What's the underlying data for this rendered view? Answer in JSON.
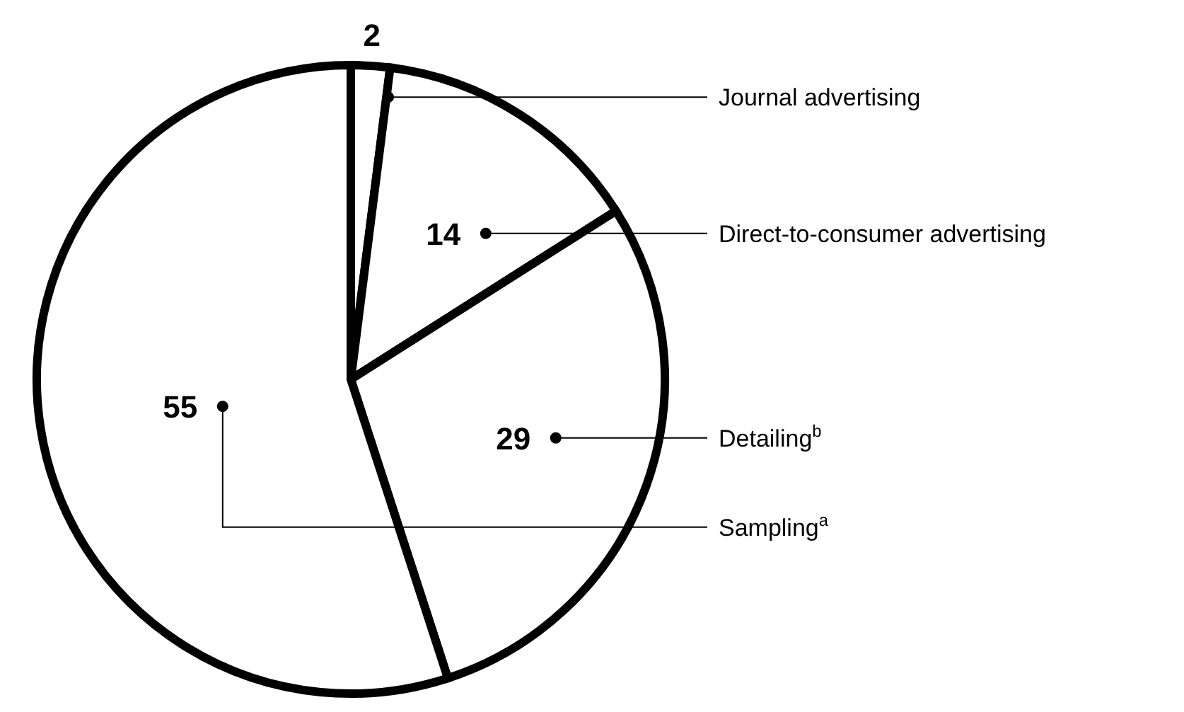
{
  "chart_data": {
    "type": "pie",
    "categories": [
      "Journal advertising",
      "Direct-to-consumer advertising",
      "Detailing$^{b}$",
      "Sampling$^{a}$"
    ],
    "values": [
      2,
      14,
      29,
      55
    ],
    "colors": [
      "#ffffff",
      "#ffffff",
      "#ffffff",
      "#ffffff"
    ],
    "data_labels": true,
    "legend": false
  }
}
